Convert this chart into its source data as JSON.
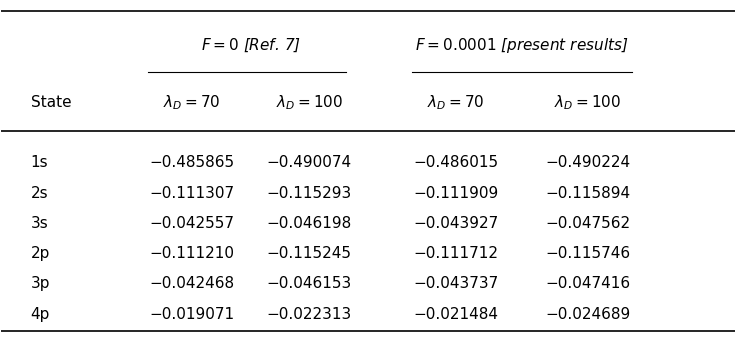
{
  "col_headers_group1": "F = 0 [Ref. 7]",
  "col_headers_group2": "F = 0.0001 [present results]",
  "col_sub1": "λ_D = 70",
  "col_sub2": "λ_D = 100",
  "col_sub3": "λ_D = 70",
  "col_sub4": "λ_D = 100",
  "row_label": "State",
  "states": [
    "1s",
    "2s",
    "3s",
    "2p",
    "3p",
    "4p"
  ],
  "data": [
    [
      "−0.485865",
      "−0.490074",
      "−0.486015",
      "−0.490224"
    ],
    [
      "−0.111307",
      "−0.115293",
      "−0.111909",
      "−0.115894"
    ],
    [
      "−0.042557",
      "−0.046198",
      "−0.043927",
      "−0.047562"
    ],
    [
      "−0.111210",
      "−0.115245",
      "−0.111712",
      "−0.115746"
    ],
    [
      "−0.042468",
      "−0.046153",
      "−0.043737",
      "−0.047416"
    ],
    [
      "−0.019071",
      "−0.022313",
      "−0.021484",
      "−0.024689"
    ]
  ],
  "ref7_color": "#1a6496",
  "background_color": "#ffffff",
  "text_color": "#000000",
  "font_size": 11,
  "header_font_size": 11
}
